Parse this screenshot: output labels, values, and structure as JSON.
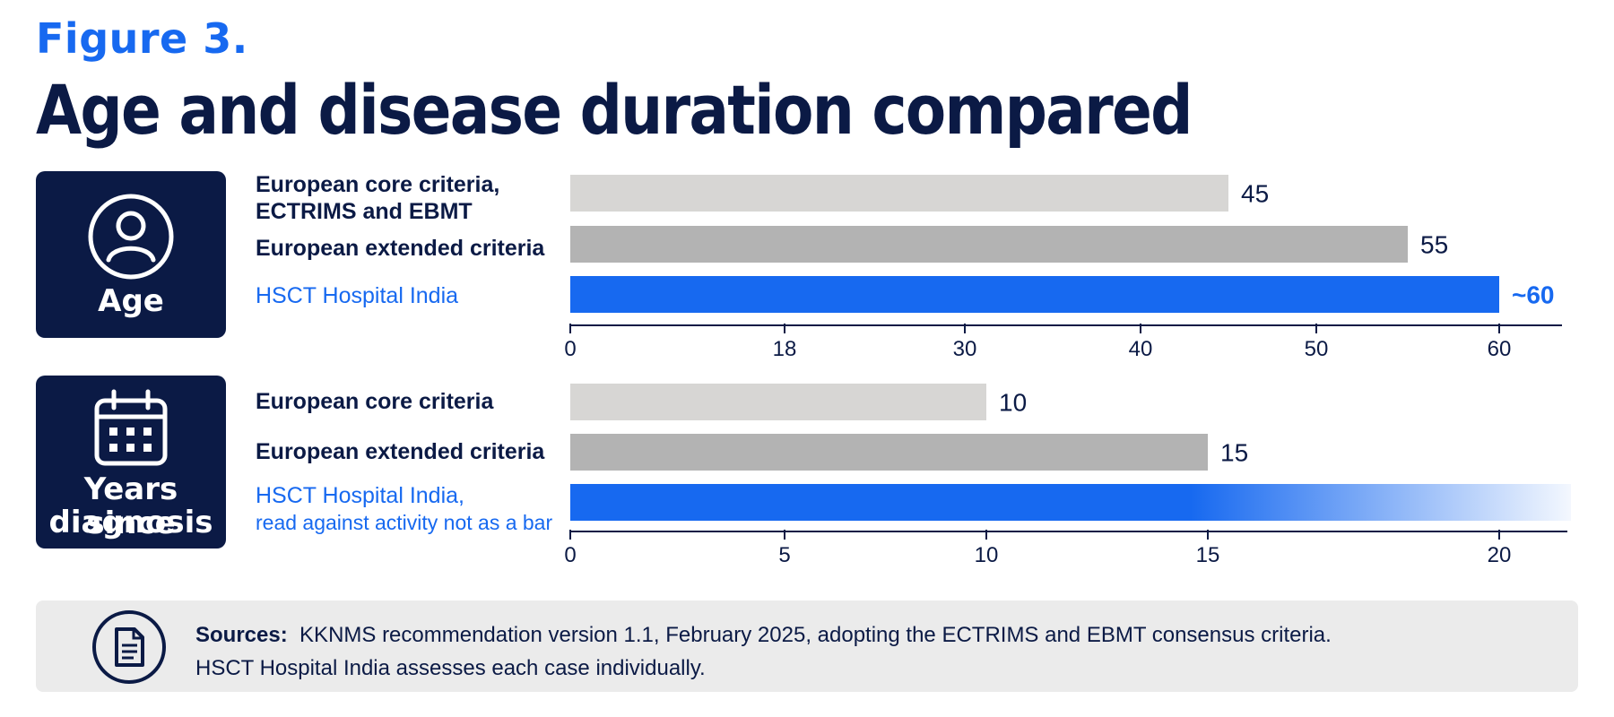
{
  "kicker": "Figure 3.",
  "title": "Age and disease duration compared",
  "colors": {
    "navy": "#0b1a45",
    "accent_blue": "#1769f0",
    "light_gray": "#d7d6d4",
    "mid_gray": "#b3b3b3",
    "panel_gray": "#ebebeb"
  },
  "chart_data": [
    {
      "type": "bar",
      "orientation": "horizontal",
      "panel_label": "Age",
      "icon": "person-icon",
      "categories": [
        "European core criteria, ECTRIMS and EBMT",
        "European extended criteria",
        "HSCT Hospital India"
      ],
      "values": [
        45,
        55,
        60
      ],
      "value_labels": [
        "45",
        "55",
        "~60"
      ],
      "bar_colors": [
        "#d7d6d4",
        "#b3b3b3",
        "#1769f0"
      ],
      "ticks": [
        0,
        18,
        30,
        40,
        50,
        60
      ],
      "tick_labels": [
        "0",
        "18",
        "30",
        "40",
        "50",
        "60"
      ],
      "axis_scale": "piecewise",
      "xlim": [
        0,
        60
      ]
    },
    {
      "type": "bar",
      "orientation": "horizontal",
      "panel_label": "Years since diagnosis",
      "icon": "calendar-icon",
      "categories": [
        "European core criteria",
        "European extended criteria",
        "HSCT Hospital India, read against activity not as a bar"
      ],
      "values": [
        10,
        15,
        null
      ],
      "value_labels": [
        "10",
        "15",
        ""
      ],
      "bar_colors": [
        "#d7d6d4",
        "#b3b3b3",
        "#1769f0"
      ],
      "third_bar_style": "gradient fade from about 15 toward beyond 20",
      "ticks": [
        0,
        5,
        10,
        15,
        20
      ],
      "tick_labels": [
        "0",
        "5",
        "10",
        "15",
        "20"
      ],
      "axis_scale": "piecewise",
      "xlim": [
        0,
        20
      ]
    }
  ],
  "panels": {
    "age": {
      "label": "Age",
      "rows": [
        "European core criteria,",
        "ECTRIMS and EBMT",
        "European extended criteria",
        "HSCT Hospital India"
      ]
    },
    "years": {
      "label_line1": "Years since",
      "label_line2": "diagnosis",
      "rows": [
        "European core criteria",
        "European extended criteria",
        "HSCT Hospital India,",
        "read against activity not as a bar"
      ]
    }
  },
  "sources": {
    "label": "Sources:",
    "line1": "KKNMS recommendation version 1.1, February 2025, adopting the ECTRIMS and EBMT consensus criteria.",
    "line2": "HSCT Hospital India assesses each case individually.",
    "icon": "document-icon"
  }
}
